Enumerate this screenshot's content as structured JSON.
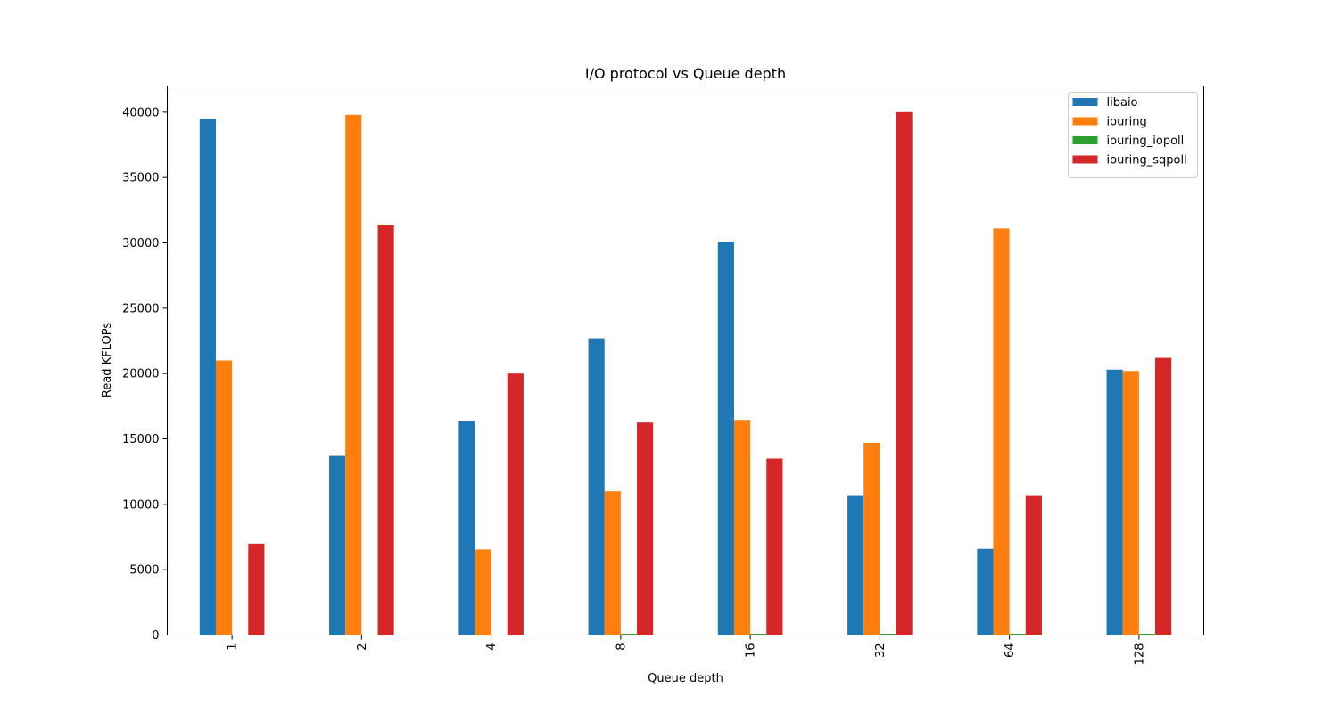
{
  "chart_data": {
    "type": "bar",
    "title": "I/O protocol vs Queue depth",
    "xlabel": "Queue depth",
    "ylabel": "Read KFLOPs",
    "categories": [
      "1",
      "2",
      "4",
      "8",
      "16",
      "32",
      "64",
      "128"
    ],
    "ylim": [
      0,
      42000
    ],
    "yticks": [
      0,
      5000,
      10000,
      15000,
      20000,
      25000,
      30000,
      35000,
      40000
    ],
    "grid": false,
    "legend_position": "top-right",
    "series": [
      {
        "name": "libaio",
        "color": "#1f77b4",
        "values": [
          39500,
          13700,
          16400,
          22700,
          30100,
          10700,
          6600,
          20300
        ]
      },
      {
        "name": "iouring",
        "color": "#ff7f0e",
        "values": [
          21000,
          39800,
          6550,
          11000,
          16450,
          14700,
          31100,
          20200
        ]
      },
      {
        "name": "iouring_iopoll",
        "color": "#2ca02c",
        "values": [
          0,
          0,
          0,
          100,
          100,
          100,
          100,
          100
        ]
      },
      {
        "name": "iouring_sqpoll",
        "color": "#d62728",
        "values": [
          7000,
          31400,
          20000,
          16250,
          13500,
          40000,
          10700,
          21200
        ]
      }
    ]
  }
}
